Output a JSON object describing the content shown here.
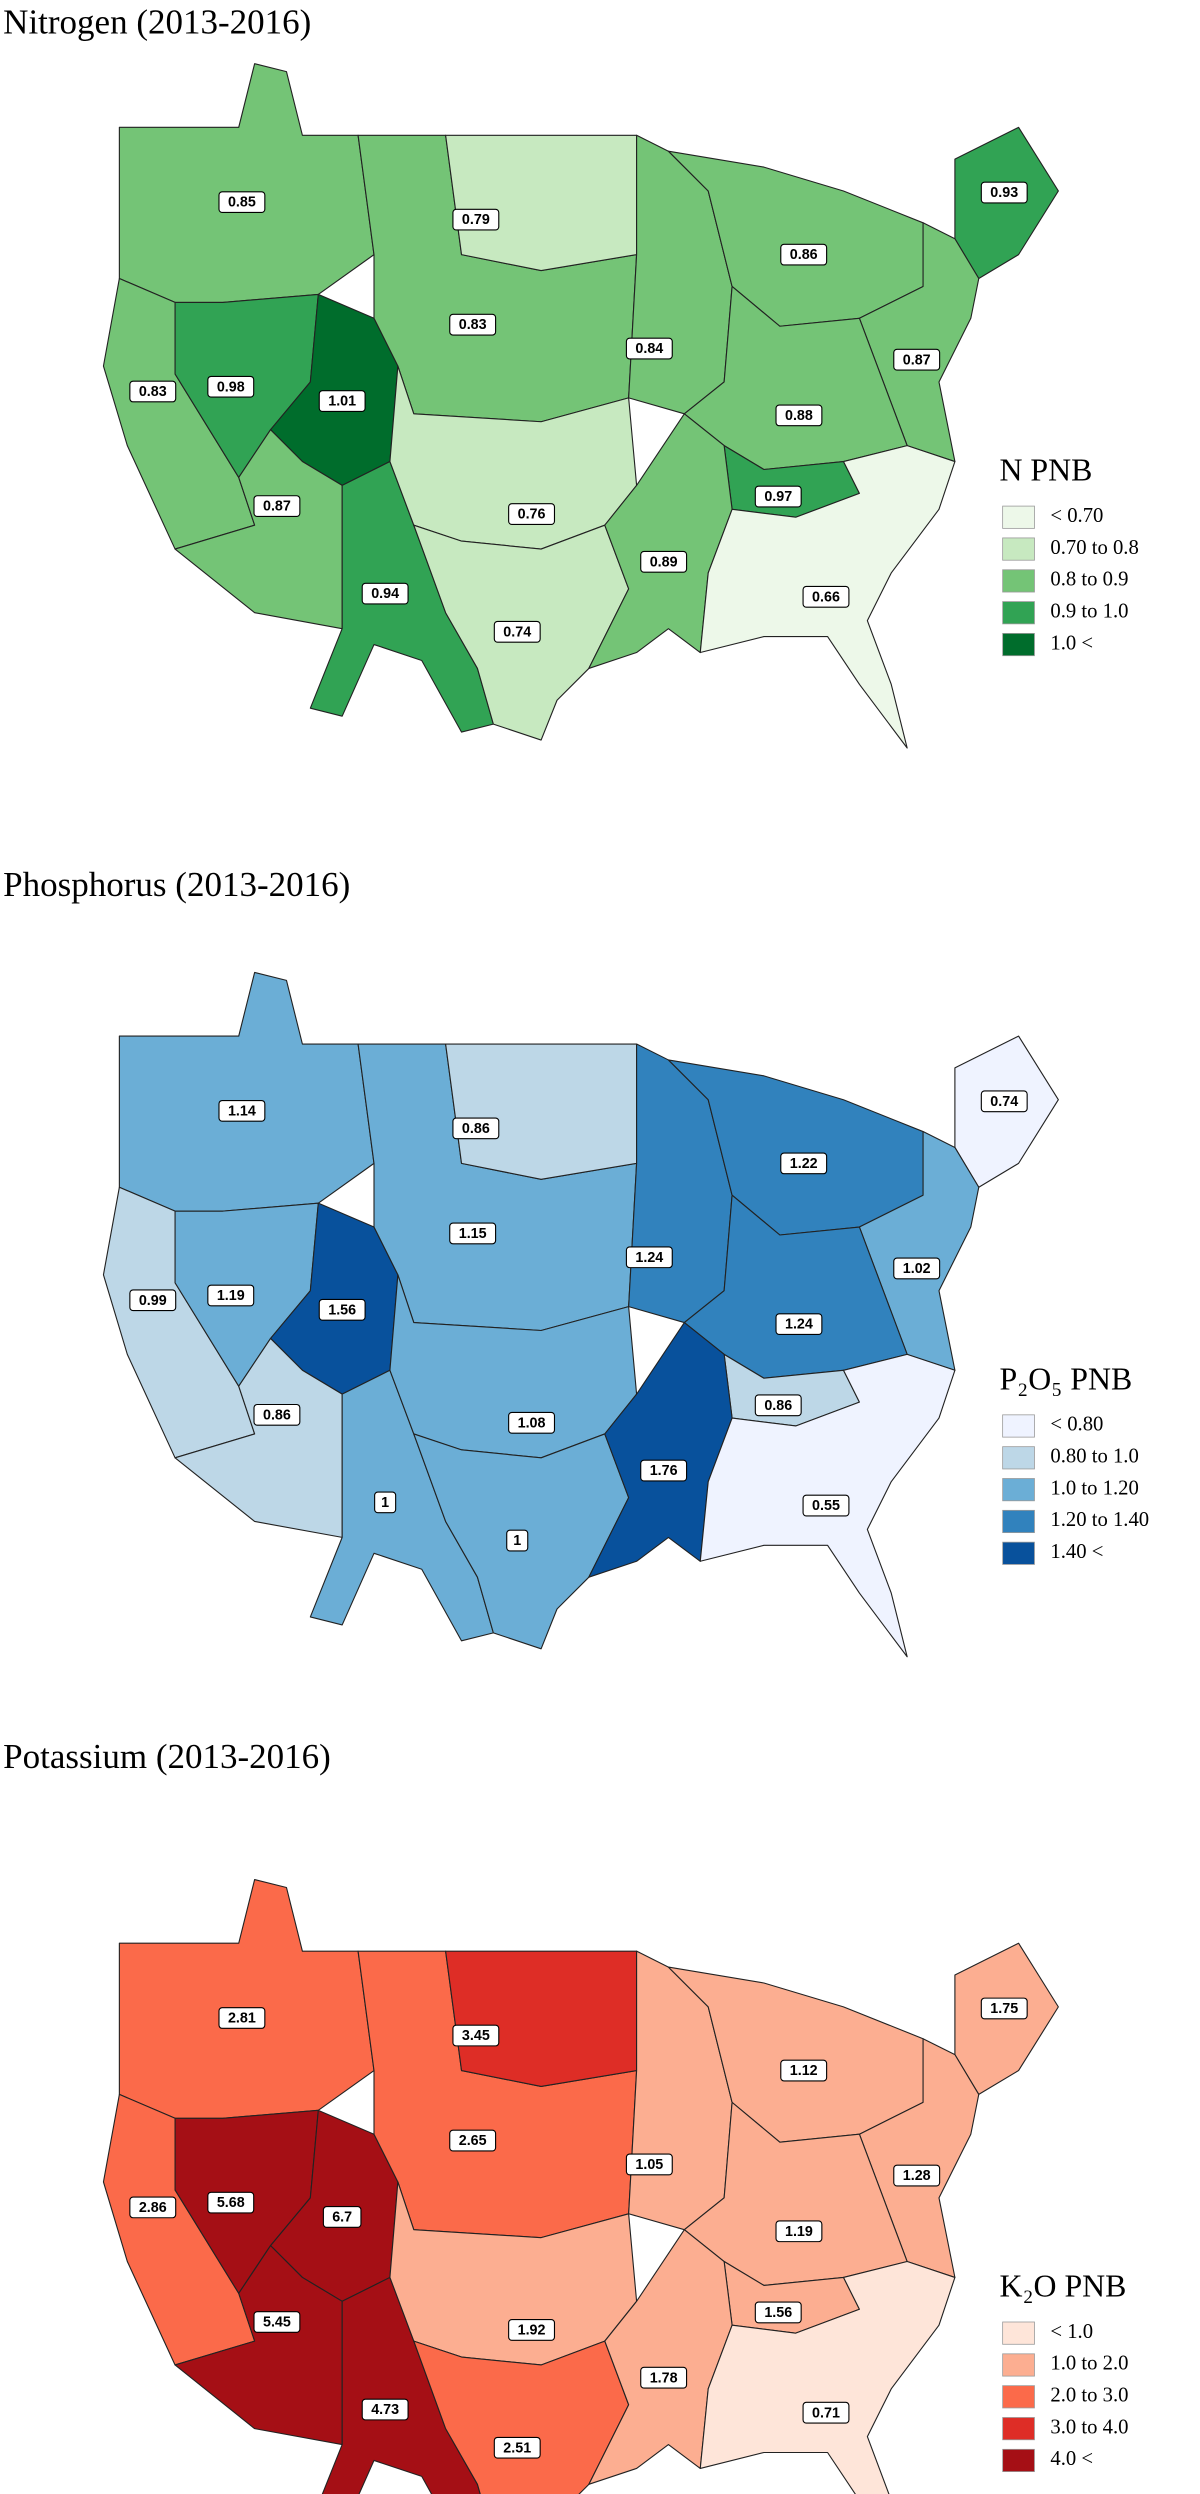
{
  "maps": [
    {
      "title": "Nitrogen (2013-2016)",
      "legend_title": "N PNB",
      "legend": [
        {
          "label": "< 0.70",
          "color": "#edf8e9"
        },
        {
          "label": "0.70 to 0.8",
          "color": "#c7e9c0"
        },
        {
          "label": "0.8 to 0.9",
          "color": "#74c476"
        },
        {
          "label": "0.9 to 1.0",
          "color": "#31a354"
        },
        {
          "label": "1.0 <",
          "color": "#006d2c"
        }
      ],
      "regions": [
        {
          "label": "0.85",
          "color": "#74c476"
        },
        {
          "label": "0.83",
          "color": "#74c476"
        },
        {
          "label": "0.98",
          "color": "#31a354"
        },
        {
          "label": "1.01",
          "color": "#006d2c"
        },
        {
          "label": "0.87",
          "color": "#74c476"
        },
        {
          "label": "0.94",
          "color": "#31a354"
        },
        {
          "label": "0.83",
          "color": "#74c476"
        },
        {
          "label": "0.79",
          "color": "#c7e9c0"
        },
        {
          "label": "0.76",
          "color": "#c7e9c0"
        },
        {
          "label": "0.74",
          "color": "#c7e9c0"
        },
        {
          "label": "0.84",
          "color": "#74c476"
        },
        {
          "label": "0.86",
          "color": "#74c476"
        },
        {
          "label": "0.93",
          "color": "#31a354"
        },
        {
          "label": "0.87",
          "color": "#74c476"
        },
        {
          "label": "0.88",
          "color": "#74c476"
        },
        {
          "label": "0.97",
          "color": "#31a354"
        },
        {
          "label": "0.89",
          "color": "#74c476"
        },
        {
          "label": "0.66",
          "color": "#edf8e9"
        }
      ]
    },
    {
      "title": "Phosphorus (2013-2016)",
      "legend_title": "P₂O₅ PNB",
      "legend": [
        {
          "label": "< 0.80",
          "color": "#eff3ff"
        },
        {
          "label": "0.80 to 1.0",
          "color": "#bdd7e7"
        },
        {
          "label": "1.0 to 1.20",
          "color": "#6baed6"
        },
        {
          "label": "1.20 to 1.40",
          "color": "#3182bd"
        },
        {
          "label": "1.40 <",
          "color": "#08519c"
        }
      ],
      "regions": [
        {
          "label": "1.14",
          "color": "#6baed6"
        },
        {
          "label": "0.99",
          "color": "#bdd7e7"
        },
        {
          "label": "1.19",
          "color": "#6baed6"
        },
        {
          "label": "1.56",
          "color": "#08519c"
        },
        {
          "label": "0.86",
          "color": "#bdd7e7"
        },
        {
          "label": "1",
          "color": "#6baed6"
        },
        {
          "label": "1.15",
          "color": "#6baed6"
        },
        {
          "label": "0.86",
          "color": "#bdd7e7"
        },
        {
          "label": "1.08",
          "color": "#6baed6"
        },
        {
          "label": "1",
          "color": "#6baed6"
        },
        {
          "label": "1.24",
          "color": "#3182bd"
        },
        {
          "label": "1.22",
          "color": "#3182bd"
        },
        {
          "label": "0.74",
          "color": "#eff3ff"
        },
        {
          "label": "1.02",
          "color": "#6baed6"
        },
        {
          "label": "1.24",
          "color": "#3182bd"
        },
        {
          "label": "0.86",
          "color": "#bdd7e7"
        },
        {
          "label": "1.76",
          "color": "#08519c"
        },
        {
          "label": "0.55",
          "color": "#eff3ff"
        }
      ]
    },
    {
      "title": "Potassium (2013-2016)",
      "legend_title": "K₂O PNB",
      "legend": [
        {
          "label": "< 1.0",
          "color": "#fee5d9"
        },
        {
          "label": "1.0 to 2.0",
          "color": "#fcae91"
        },
        {
          "label": "2.0 to 3.0",
          "color": "#fb6a4a"
        },
        {
          "label": "3.0 to 4.0",
          "color": "#de2d26"
        },
        {
          "label": "4.0 <",
          "color": "#a50f15"
        }
      ],
      "regions": [
        {
          "label": "2.81",
          "color": "#fb6a4a"
        },
        {
          "label": "2.86",
          "color": "#fb6a4a"
        },
        {
          "label": "5.68",
          "color": "#a50f15"
        },
        {
          "label": "6.7",
          "color": "#a50f15"
        },
        {
          "label": "5.45",
          "color": "#a50f15"
        },
        {
          "label": "4.73",
          "color": "#a50f15"
        },
        {
          "label": "2.65",
          "color": "#fb6a4a"
        },
        {
          "label": "3.45",
          "color": "#de2d26"
        },
        {
          "label": "1.92",
          "color": "#fcae91"
        },
        {
          "label": "2.51",
          "color": "#fb6a4a"
        },
        {
          "label": "1.05",
          "color": "#fcae91"
        },
        {
          "label": "1.12",
          "color": "#fcae91"
        },
        {
          "label": "1.75",
          "color": "#fcae91"
        },
        {
          "label": "1.28",
          "color": "#fcae91"
        },
        {
          "label": "1.19",
          "color": "#fcae91"
        },
        {
          "label": "1.56",
          "color": "#fcae91"
        },
        {
          "label": "1.78",
          "color": "#fcae91"
        },
        {
          "label": "0.71",
          "color": "#fee5d9"
        }
      ]
    }
  ]
}
